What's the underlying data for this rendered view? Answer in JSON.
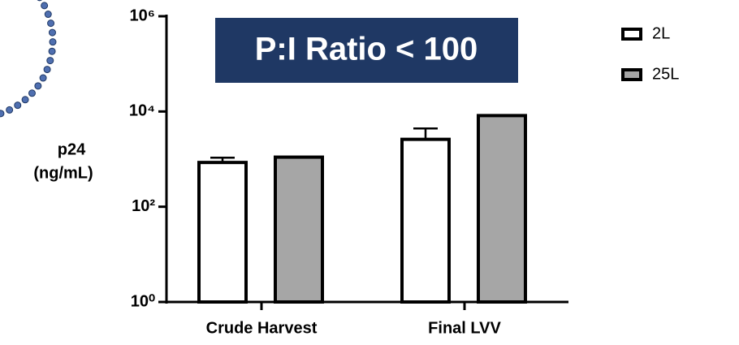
{
  "chart_data": {
    "type": "bar",
    "log_scale": true,
    "annotation": "P:I Ratio < 100",
    "ylabel": [
      "p24",
      "(ng/mL)"
    ],
    "categories": [
      "Crude Harvest",
      "Final LVV"
    ],
    "series": [
      {
        "name": "2L",
        "color": "#ffffff",
        "values": [
          850,
          2600
        ],
        "errors": [
          220,
          1800
        ]
      },
      {
        "name": "25L",
        "color": "#a6a6a6",
        "values": [
          1100,
          8200
        ]
      }
    ],
    "ylim": [
      1,
      1000000
    ],
    "yticks": [
      {
        "value": 1,
        "label": "10⁰"
      },
      {
        "value": 100,
        "label": "10²"
      },
      {
        "value": 10000,
        "label": "10⁴"
      },
      {
        "value": 1000000,
        "label": "10⁶"
      }
    ]
  }
}
